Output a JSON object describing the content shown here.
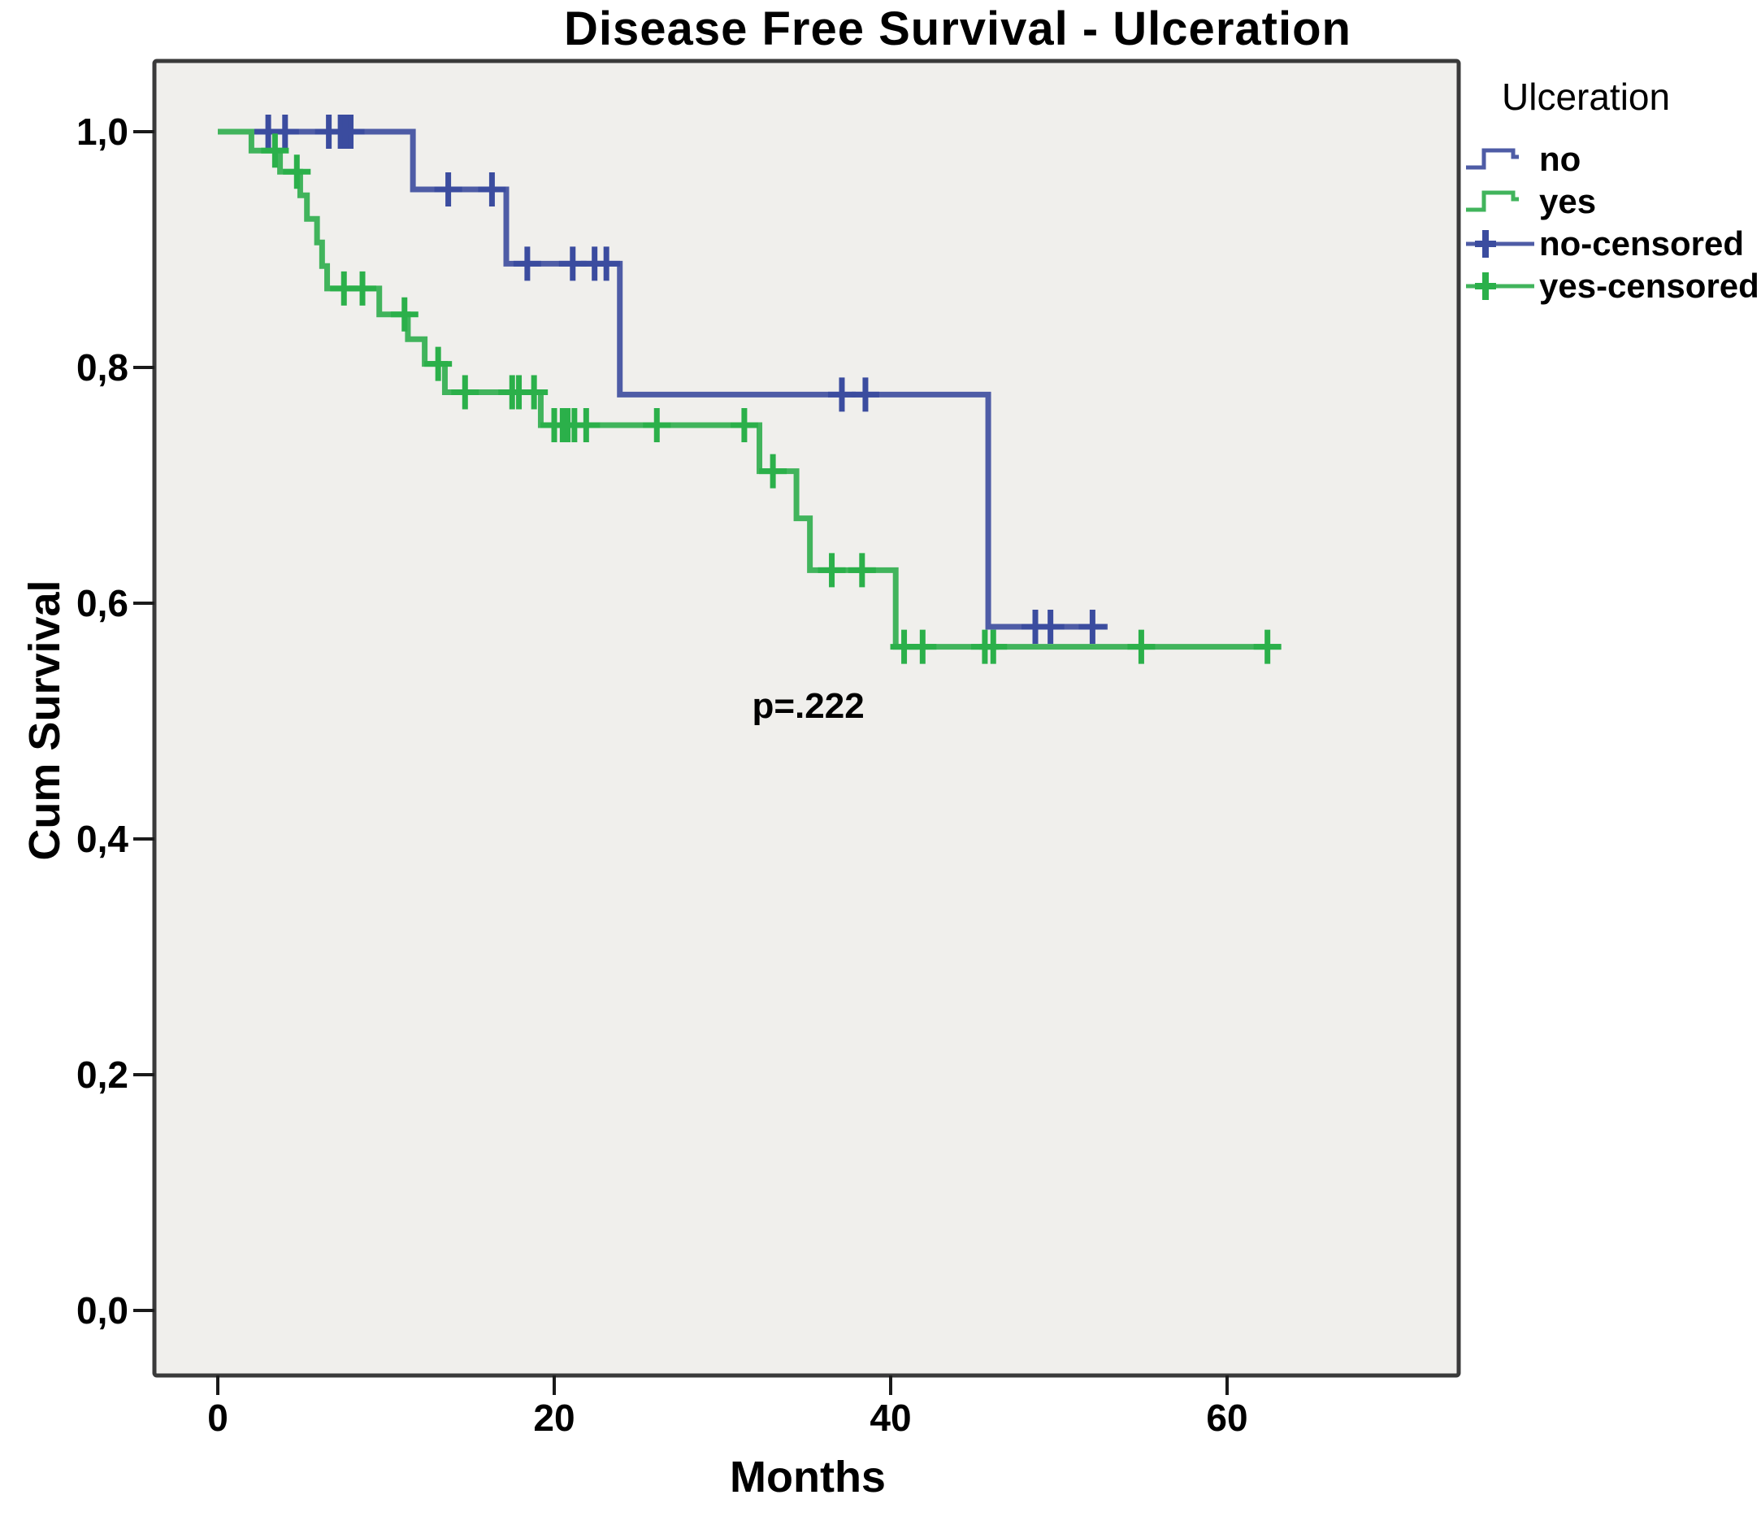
{
  "chart_data": {
    "type": "line",
    "subtype": "kaplan-meier-step",
    "title": "Disease Free Survival - Ulceration",
    "xlabel": "Months",
    "ylabel": "Cum Survival",
    "grid": false,
    "plot_bg": "#f0efec",
    "plot_border": "#3a3a3a",
    "xlim": [
      -3.8,
      73.8
    ],
    "ylim": [
      -0.058,
      1.06
    ],
    "x_ticks": [
      {
        "v": 0,
        "label": "0"
      },
      {
        "v": 20,
        "label": "20"
      },
      {
        "v": 40,
        "label": "40"
      },
      {
        "v": 60,
        "label": "60"
      }
    ],
    "y_ticks": [
      {
        "v": 0.0,
        "label": "0,0"
      },
      {
        "v": 0.2,
        "label": "0,2"
      },
      {
        "v": 0.4,
        "label": "0,4"
      },
      {
        "v": 0.6,
        "label": "0,6"
      },
      {
        "v": 0.8,
        "label": "0,8"
      },
      {
        "v": 1.0,
        "label": "1,0"
      }
    ],
    "annotation": {
      "text": "p=.222",
      "x": 35.1,
      "y": 0.512
    },
    "legend": {
      "title": "Ulceration",
      "position": "right",
      "entries": [
        {
          "label": "no",
          "type": "step",
          "color": "#4e5ca6",
          "mark_color": "#3b4c9f"
        },
        {
          "label": "yes",
          "type": "step",
          "color": "#41b45c",
          "mark_color": "#2bb04a"
        },
        {
          "label": "no-censored",
          "type": "censored",
          "color": "#4e5ca6",
          "mark_color": "#3b4c9f"
        },
        {
          "label": "yes-censored",
          "type": "censored",
          "color": "#41b45c",
          "mark_color": "#2bb04a"
        }
      ]
    },
    "series": [
      {
        "name": "no",
        "color": "#4e5ca6",
        "censor_color": "#3b4c9f",
        "start": [
          0,
          1.0
        ],
        "steps": [
          [
            11.6,
            0.951
          ],
          [
            17.15,
            0.888
          ],
          [
            23.9,
            0.777
          ],
          [
            45.8,
            0.58
          ]
        ],
        "end_t": 52.9,
        "censors": [
          [
            3.0,
            1.0
          ],
          [
            4.0,
            1.0
          ],
          [
            6.6,
            1.0
          ],
          [
            7.3,
            1.0
          ],
          [
            7.6,
            1.0
          ],
          [
            7.9,
            1.0
          ],
          [
            13.7,
            0.951
          ],
          [
            16.3,
            0.951
          ],
          [
            18.4,
            0.888
          ],
          [
            21.1,
            0.888
          ],
          [
            22.4,
            0.888
          ],
          [
            23.1,
            0.888
          ],
          [
            37.1,
            0.777
          ],
          [
            38.5,
            0.777
          ],
          [
            48.6,
            0.58
          ],
          [
            49.5,
            0.58
          ],
          [
            52.0,
            0.58
          ]
        ]
      },
      {
        "name": "yes",
        "color": "#41b45c",
        "censor_color": "#2bb04a",
        "start": [
          0,
          1.0
        ],
        "steps": [
          [
            2.0,
            0.984
          ],
          [
            3.7,
            0.966
          ],
          [
            4.9,
            0.946
          ],
          [
            5.3,
            0.926
          ],
          [
            5.9,
            0.906
          ],
          [
            6.2,
            0.886
          ],
          [
            6.5,
            0.867
          ],
          [
            9.6,
            0.845
          ],
          [
            11.3,
            0.824
          ],
          [
            12.3,
            0.803
          ],
          [
            13.5,
            0.779
          ],
          [
            19.2,
            0.751
          ],
          [
            32.2,
            0.712
          ],
          [
            34.4,
            0.672
          ],
          [
            35.2,
            0.628
          ],
          [
            40.3,
            0.563
          ]
        ],
        "end_t": 63.2,
        "censors": [
          [
            3.4,
            0.984
          ],
          [
            4.7,
            0.966
          ],
          [
            7.5,
            0.867
          ],
          [
            8.6,
            0.867
          ],
          [
            11.1,
            0.845
          ],
          [
            13.1,
            0.803
          ],
          [
            14.7,
            0.779
          ],
          [
            17.5,
            0.779
          ],
          [
            17.9,
            0.779
          ],
          [
            18.8,
            0.779
          ],
          [
            20.0,
            0.751
          ],
          [
            20.5,
            0.751
          ],
          [
            20.8,
            0.751
          ],
          [
            21.2,
            0.751
          ],
          [
            21.9,
            0.751
          ],
          [
            26.1,
            0.751
          ],
          [
            31.3,
            0.751
          ],
          [
            33.0,
            0.712
          ],
          [
            36.5,
            0.628
          ],
          [
            38.3,
            0.628
          ],
          [
            40.8,
            0.563
          ],
          [
            41.9,
            0.563
          ],
          [
            45.6,
            0.563
          ],
          [
            46.1,
            0.563
          ],
          [
            54.9,
            0.563
          ],
          [
            62.4,
            0.563
          ]
        ]
      }
    ]
  }
}
